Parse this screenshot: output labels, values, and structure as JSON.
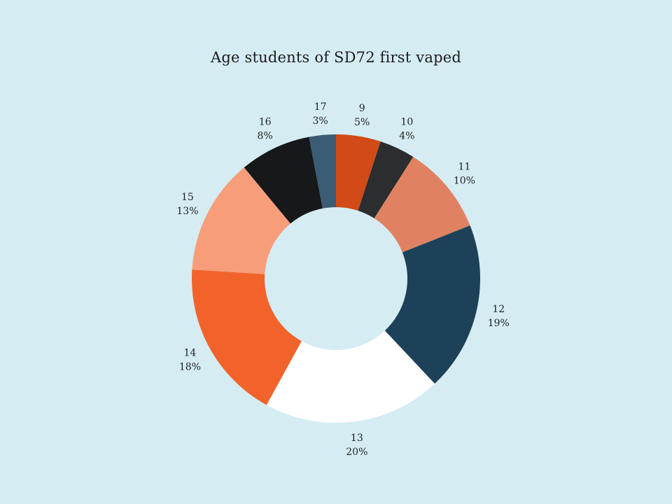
{
  "chart_data": {
    "type": "pie",
    "style": "donut",
    "title": "Age students of SD72 first vaped",
    "categories": [
      "9",
      "10",
      "11",
      "12",
      "13",
      "14",
      "15",
      "16",
      "17"
    ],
    "values": [
      5,
      4,
      10,
      19,
      20,
      18,
      13,
      8,
      3
    ],
    "value_labels": [
      "5%",
      "4%",
      "10%",
      "19%",
      "20%",
      "18%",
      "13%",
      "8%",
      "3%"
    ],
    "colors": [
      "#d24a17",
      "#2b2d2e",
      "#e08262",
      "#1d4159",
      "#ffffff",
      "#f2632c",
      "#f89d7a",
      "#161819",
      "#3a5c75"
    ]
  }
}
